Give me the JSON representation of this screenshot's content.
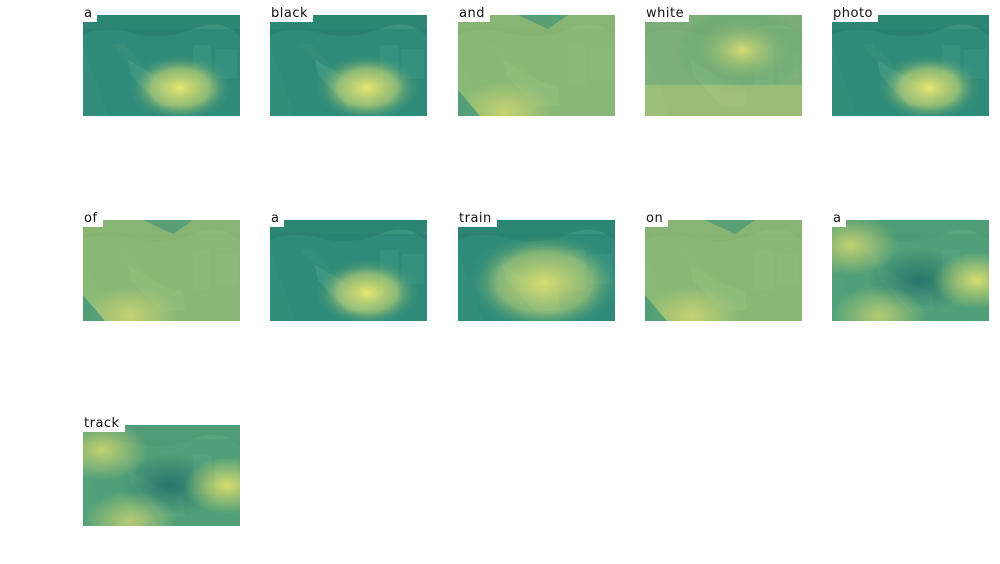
{
  "panels": [
    {
      "word": "a",
      "focus": "train-front"
    },
    {
      "word": "black",
      "focus": "train-front"
    },
    {
      "word": "and",
      "focus": "diffuse"
    },
    {
      "word": "white",
      "focus": "upper-right"
    },
    {
      "word": "photo",
      "focus": "train-front"
    },
    {
      "word": "of",
      "focus": "diffuse"
    },
    {
      "word": "a",
      "focus": "train-front"
    },
    {
      "word": "train",
      "focus": "train-wide"
    },
    {
      "word": "on",
      "focus": "diffuse"
    },
    {
      "word": "a",
      "focus": "surroundings"
    },
    {
      "word": "track",
      "focus": "surroundings"
    }
  ],
  "colors": {
    "base_teal": "#2a8a78",
    "heat_yellow": "#e8e070",
    "label_bg": "#ffffff"
  }
}
